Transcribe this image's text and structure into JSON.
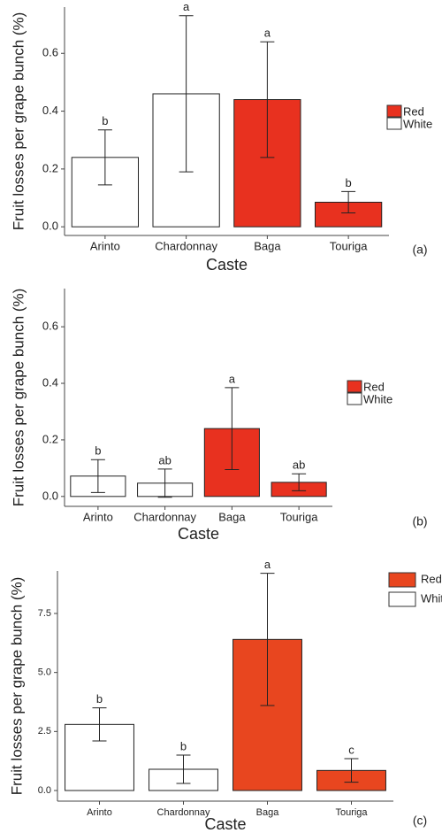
{
  "chart_data": [
    {
      "type": "bar",
      "panel_label": "(a)",
      "x_label": "Caste",
      "y_label": "Fruit losses per grape bunch (%)",
      "categories": [
        "Arinto",
        "Chardonnay",
        "Baga",
        "Touriga"
      ],
      "values": [
        0.24,
        0.46,
        0.44,
        0.085
      ],
      "errors": [
        0.095,
        0.27,
        0.2,
        0.037
      ],
      "letters": [
        "b",
        "a",
        "a",
        "b"
      ],
      "colors": [
        "#ffffff",
        "#ffffff",
        "#e8311f",
        "#e8311f"
      ],
      "legend": [
        {
          "name": "Red",
          "color": "#e8311f"
        },
        {
          "name": "White",
          "color": "#ffffff"
        }
      ],
      "ylim": [
        -0.03,
        0.76
      ],
      "yticks": [
        {
          "value": 0,
          "label": "0.0"
        },
        {
          "value": 0.2,
          "label": "0.2"
        },
        {
          "value": 0.4,
          "label": "0.4"
        },
        {
          "value": 0.6,
          "label": "0.6"
        }
      ]
    },
    {
      "type": "bar",
      "panel_label": "(b)",
      "x_label": "Caste",
      "y_label": "Fruit losses per grape bunch (%)",
      "categories": [
        "Arinto",
        "Chardonnay",
        "Baga",
        "Touriga"
      ],
      "values": [
        0.072,
        0.047,
        0.24,
        0.05
      ],
      "errors": [
        0.058,
        0.05,
        0.145,
        0.03
      ],
      "letters": [
        "b",
        "ab",
        "a",
        "ab"
      ],
      "colors": [
        "#ffffff",
        "#ffffff",
        "#e8311f",
        "#e8311f"
      ],
      "legend": [
        {
          "name": "Red",
          "color": "#e8311f"
        },
        {
          "name": "White",
          "color": "#ffffff"
        }
      ],
      "ylim": [
        -0.035,
        0.735
      ],
      "yticks": [
        {
          "value": 0,
          "label": "0.0"
        },
        {
          "value": 0.2,
          "label": "0.2"
        },
        {
          "value": 0.4,
          "label": "0.4"
        },
        {
          "value": 0.6,
          "label": "0.6"
        }
      ]
    },
    {
      "type": "bar",
      "panel_label": "(c)",
      "x_label": "Caste",
      "y_label": "Fruit losses per grape bunch (%)",
      "categories": [
        "Arinto",
        "Chardonnay",
        "Baga",
        "Touriga"
      ],
      "values": [
        2.8,
        0.9,
        6.4,
        0.85
      ],
      "errors": [
        0.7,
        0.6,
        2.8,
        0.5
      ],
      "letters": [
        "b",
        "b",
        "a",
        "c"
      ],
      "colors": [
        "#ffffff",
        "#ffffff",
        "#e8461f",
        "#e8461f"
      ],
      "legend": [
        {
          "name": "Red",
          "color": "#e8461f"
        },
        {
          "name": "White",
          "color": "#ffffff"
        }
      ],
      "ylim": [
        -0.45,
        9.3
      ],
      "yticks": [
        {
          "value": 0,
          "label": "0.0"
        },
        {
          "value": 2.5,
          "label": "2.5"
        },
        {
          "value": 5,
          "label": "5.0"
        },
        {
          "value": 7.5,
          "label": "7.5"
        }
      ]
    }
  ]
}
